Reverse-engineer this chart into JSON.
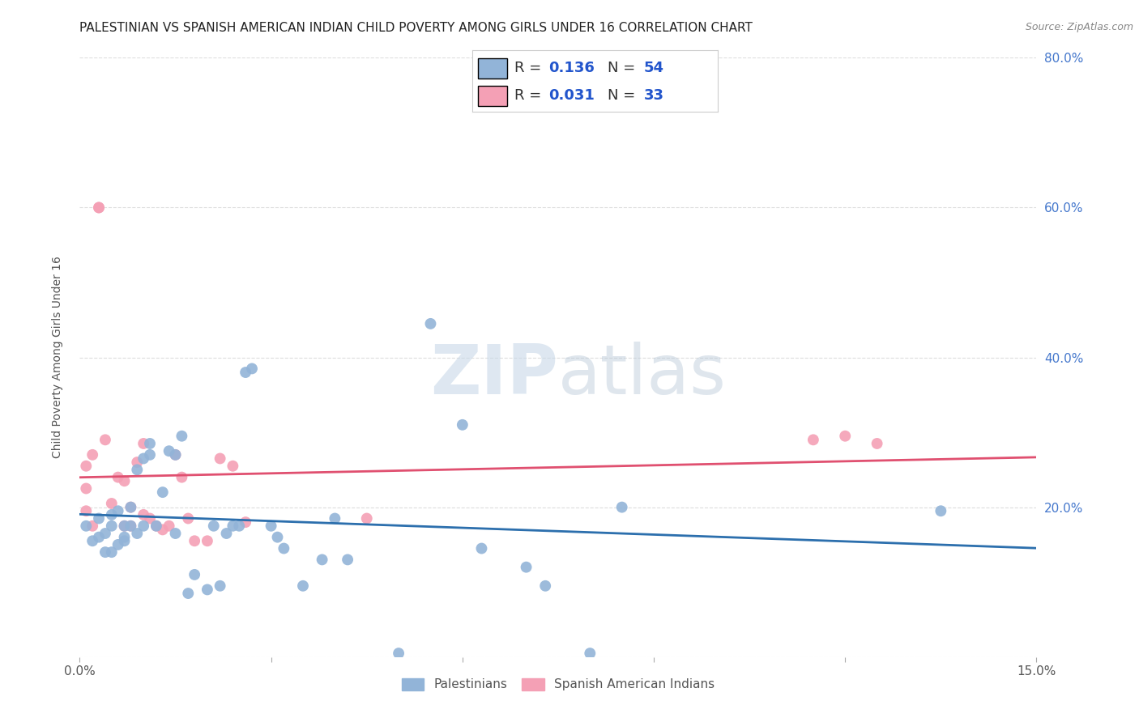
{
  "title": "PALESTINIAN VS SPANISH AMERICAN INDIAN CHILD POVERTY AMONG GIRLS UNDER 16 CORRELATION CHART",
  "source": "Source: ZipAtlas.com",
  "ylabel": "Child Poverty Among Girls Under 16",
  "xlim": [
    0.0,
    0.15
  ],
  "ylim": [
    0.0,
    0.8
  ],
  "xticks": [
    0.0,
    0.03,
    0.06,
    0.09,
    0.12,
    0.15
  ],
  "xticklabels": [
    "0.0%",
    "",
    "",
    "",
    "",
    "15.0%"
  ],
  "yticks": [
    0.0,
    0.2,
    0.4,
    0.6,
    0.8
  ],
  "right_yticklabels": [
    "",
    "20.0%",
    "40.0%",
    "60.0%",
    "80.0%"
  ],
  "palestinians_color": "#92b4d8",
  "spanish_color": "#f4a0b5",
  "trend_blue": "#2c6fad",
  "trend_pink": "#e05070",
  "R_blue": 0.136,
  "N_blue": 54,
  "R_pink": 0.031,
  "N_pink": 33,
  "legend_label_blue": "Palestinians",
  "legend_label_pink": "Spanish American Indians",
  "watermark_zip": "ZIP",
  "watermark_atlas": "atlas",
  "blue_x": [
    0.001,
    0.002,
    0.003,
    0.003,
    0.004,
    0.004,
    0.005,
    0.005,
    0.005,
    0.006,
    0.006,
    0.007,
    0.007,
    0.007,
    0.008,
    0.008,
    0.009,
    0.009,
    0.01,
    0.01,
    0.011,
    0.011,
    0.012,
    0.013,
    0.014,
    0.015,
    0.015,
    0.016,
    0.017,
    0.018,
    0.02,
    0.021,
    0.022,
    0.023,
    0.024,
    0.025,
    0.026,
    0.027,
    0.03,
    0.031,
    0.032,
    0.035,
    0.038,
    0.04,
    0.042,
    0.05,
    0.055,
    0.06,
    0.063,
    0.07,
    0.073,
    0.08,
    0.085,
    0.135
  ],
  "blue_y": [
    0.175,
    0.155,
    0.16,
    0.185,
    0.14,
    0.165,
    0.175,
    0.19,
    0.14,
    0.15,
    0.195,
    0.16,
    0.175,
    0.155,
    0.175,
    0.2,
    0.165,
    0.25,
    0.175,
    0.265,
    0.285,
    0.27,
    0.175,
    0.22,
    0.275,
    0.27,
    0.165,
    0.295,
    0.085,
    0.11,
    0.09,
    0.175,
    0.095,
    0.165,
    0.175,
    0.175,
    0.38,
    0.385,
    0.175,
    0.16,
    0.145,
    0.095,
    0.13,
    0.185,
    0.13,
    0.005,
    0.445,
    0.31,
    0.145,
    0.12,
    0.095,
    0.005,
    0.2,
    0.195
  ],
  "pink_x": [
    0.001,
    0.001,
    0.001,
    0.002,
    0.002,
    0.003,
    0.003,
    0.004,
    0.005,
    0.006,
    0.007,
    0.007,
    0.008,
    0.008,
    0.009,
    0.01,
    0.01,
    0.011,
    0.012,
    0.013,
    0.014,
    0.015,
    0.016,
    0.017,
    0.018,
    0.02,
    0.022,
    0.024,
    0.026,
    0.045,
    0.115,
    0.12,
    0.125
  ],
  "pink_y": [
    0.225,
    0.255,
    0.195,
    0.27,
    0.175,
    0.6,
    0.6,
    0.29,
    0.205,
    0.24,
    0.235,
    0.175,
    0.175,
    0.2,
    0.26,
    0.19,
    0.285,
    0.185,
    0.175,
    0.17,
    0.175,
    0.27,
    0.24,
    0.185,
    0.155,
    0.155,
    0.265,
    0.255,
    0.18,
    0.185,
    0.29,
    0.295,
    0.285
  ],
  "background_color": "#ffffff",
  "grid_color": "#dddddd",
  "title_fontsize": 11,
  "axis_label_fontsize": 10,
  "tick_fontsize": 11
}
